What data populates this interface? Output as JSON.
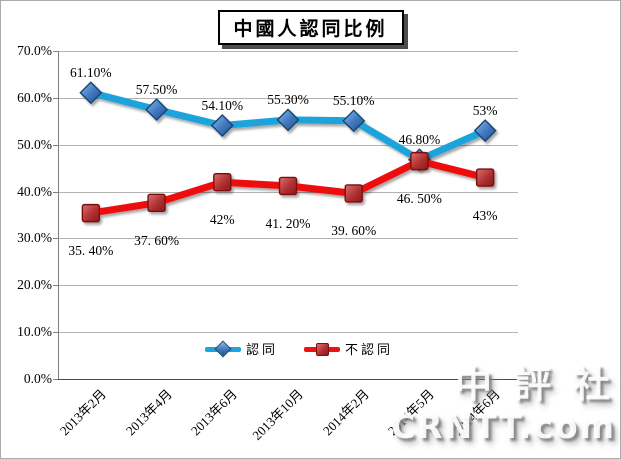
{
  "title": "中國人認同比例",
  "watermark": {
    "line1": "中評社",
    "line2": "CRNTT.com"
  },
  "chart_data": {
    "type": "line",
    "title": "中國人認同比例",
    "categories": [
      "2013年2月",
      "2013年4月",
      "2013年6月",
      "2013年10月",
      "2014年2月",
      "2014年5月",
      "2014年6月"
    ],
    "series": [
      {
        "name": "認同",
        "marker": "diamond",
        "line_color": "#1fa3dc",
        "marker_fill": [
          "#8cbcea",
          "#3e76be",
          "#24508c"
        ],
        "marker_stroke": "#17456f",
        "values": [
          61.1,
          57.5,
          54.1,
          55.3,
          55.1,
          46.8,
          53
        ],
        "labels": [
          "61.10%",
          "57.50%",
          "54.10%",
          "55.30%",
          "55.10%",
          "46.80%",
          "53%"
        ]
      },
      {
        "name": "不認同",
        "marker": "square",
        "line_color": "#ee1111",
        "marker_fill": [
          "#dd7070",
          "#b03030",
          "#8b1a1a"
        ],
        "marker_stroke": "#7a1010",
        "values": [
          35.4,
          37.6,
          42,
          41.2,
          39.6,
          46.5,
          43
        ],
        "labels": [
          "35. 40%",
          "37. 60%",
          "42%",
          "41. 20%",
          "39. 60%",
          "46. 50%",
          "43%"
        ]
      }
    ],
    "ylim": [
      0,
      70
    ],
    "ytick_step": 10,
    "ytick_labels": [
      "0.0%",
      "10.0%",
      "20.0%",
      "30.0%",
      "40.0%",
      "50.0%",
      "60.0%",
      "70.0%"
    ],
    "grid": true,
    "legend_position": "inside-bottom-center",
    "xlabel": "",
    "ylabel": ""
  }
}
